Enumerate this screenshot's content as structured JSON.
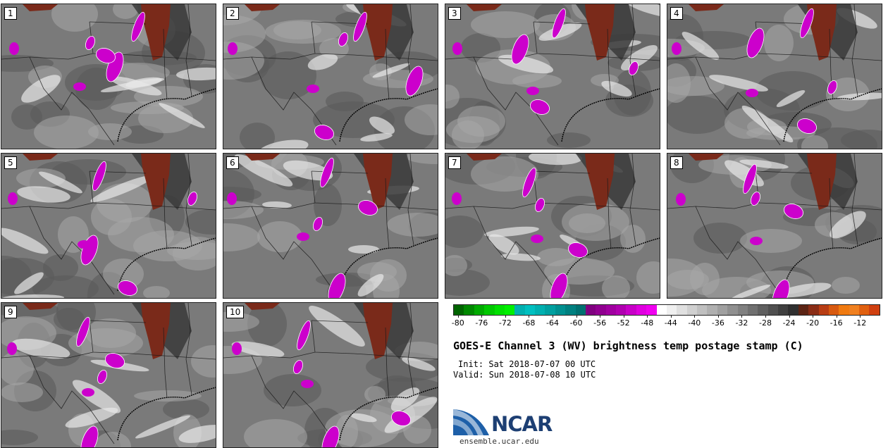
{
  "panels": [
    {
      "label": "1",
      "storm": [
        [
          105,
          120
        ],
        [
          300,
          195
        ],
        [
          230,
          160
        ],
        [
          480,
          70
        ]
      ]
    },
    {
      "label": "2",
      "storm": [
        [
          350,
          110
        ],
        [
          900,
          240
        ],
        [
          1200,
          400
        ],
        [
          480,
          70
        ]
      ]
    },
    {
      "label": "3",
      "storm": [
        [
          880,
          200
        ],
        [
          1000,
          140
        ],
        [
          1150,
          320
        ],
        [
          300,
          60
        ]
      ]
    },
    {
      "label": "4",
      "storm": [
        [
          700,
          260
        ],
        [
          1100,
          120
        ],
        [
          1500,
          380
        ],
        [
          500,
          60
        ]
      ]
    },
    {
      "label": "5",
      "storm": [
        [
          900,
          140
        ],
        [
          1100,
          300
        ],
        [
          1400,
          420
        ],
        [
          180,
          70
        ]
      ]
    },
    {
      "label": "6",
      "storm": [
        [
          1150,
          220
        ],
        [
          1300,
          420
        ],
        [
          540,
          170
        ],
        [
          220,
          60
        ]
      ]
    },
    {
      "label": "7",
      "storm": [
        [
          1150,
          160
        ],
        [
          1300,
          420
        ],
        [
          1450,
          300
        ],
        [
          70,
          90
        ]
      ]
    },
    {
      "label": "8",
      "storm": [
        [
          1100,
          140
        ],
        [
          1300,
          440
        ],
        [
          400,
          180
        ],
        [
          60,
          80
        ]
      ]
    },
    {
      "label": "9",
      "storm": [
        [
          1200,
          230
        ],
        [
          1100,
          430
        ],
        [
          300,
          180
        ],
        [
          50,
          90
        ]
      ]
    },
    {
      "label": "10",
      "storm": [
        [
          1000,
          200
        ],
        [
          1250,
          430
        ],
        [
          800,
          360
        ],
        [
          40,
          100
        ]
      ]
    }
  ],
  "colorbar": {
    "colors": [
      "#006400",
      "#008800",
      "#00aa00",
      "#00c800",
      "#00e000",
      "#00f000",
      "#00b0b0",
      "#00c0c0",
      "#00b0b0",
      "#00a0a0",
      "#009090",
      "#008080",
      "#007070",
      "#800080",
      "#900090",
      "#a000a0",
      "#b000b0",
      "#c800c8",
      "#e000e0",
      "#f000f0",
      "#ffffff",
      "#f0f0f0",
      "#e0e0e0",
      "#d0d0d0",
      "#c0c0c0",
      "#b0b0b0",
      "#a0a0a0",
      "#909090",
      "#808080",
      "#707070",
      "#606060",
      "#505050",
      "#404040",
      "#303030",
      "#5c2414",
      "#8a2d16",
      "#b83d14",
      "#d85a10",
      "#f07a10",
      "#f08020",
      "#e06010",
      "#d04010"
    ],
    "ticks": [
      "-80",
      "-76",
      "-72",
      "-68",
      "-64",
      "-60",
      "-56",
      "-52",
      "-48",
      "-44",
      "-40",
      "-36",
      "-32",
      "-28",
      "-24",
      "-20",
      "-16",
      "-12"
    ]
  },
  "title": "GOES-E Channel 3 (WV) brightness temp postage stamp (C)",
  "init": "Init: Sat 2018-07-07 00 UTC",
  "valid": "Valid: Sun 2018-07-08 10 UTC",
  "logo_text": "NCAR",
  "site": "ensemble.ucar.edu",
  "colors": {
    "dry": "#7a2a1a",
    "moist": "#cc00cc",
    "dark_gray": "#3a3a3a",
    "light": "#e8e8e8",
    "mid_gray": "#7a7a7a"
  }
}
